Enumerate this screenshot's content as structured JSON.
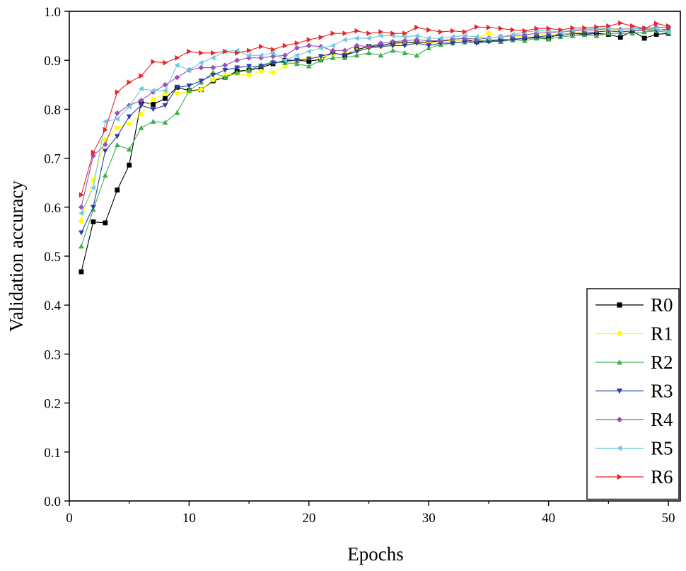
{
  "chart_data": {
    "type": "line",
    "title": "",
    "xlabel": "Epochs",
    "ylabel": "Validation accuracy",
    "xlim": [
      0,
      51
    ],
    "ylim": [
      0.0,
      1.0
    ],
    "x_ticks": [
      0,
      10,
      20,
      30,
      40,
      50
    ],
    "y_ticks": [
      0.0,
      0.1,
      0.2,
      0.3,
      0.4,
      0.5,
      0.6,
      0.7,
      0.8,
      0.9,
      1.0
    ],
    "x_tick_labels": [
      "0",
      "10",
      "20",
      "30",
      "40",
      "50"
    ],
    "y_tick_labels": [
      "0.0",
      "0.1",
      "0.2",
      "0.3",
      "0.4",
      "0.5",
      "0.6",
      "0.7",
      "0.8",
      "0.9",
      "1.0"
    ],
    "grid": false,
    "legend_position": "bottom-right",
    "x": [
      1,
      2,
      3,
      4,
      5,
      6,
      7,
      8,
      9,
      10,
      11,
      12,
      13,
      14,
      15,
      16,
      17,
      18,
      19,
      20,
      21,
      22,
      23,
      24,
      25,
      26,
      27,
      28,
      29,
      30,
      31,
      32,
      33,
      34,
      35,
      36,
      37,
      38,
      39,
      40,
      41,
      42,
      43,
      44,
      45,
      46,
      47,
      48,
      49,
      50
    ],
    "series": [
      {
        "name": "R0",
        "color": "#000000",
        "marker": "square",
        "values": [
          0.468,
          0.57,
          0.568,
          0.635,
          0.686,
          0.815,
          0.81,
          0.822,
          0.845,
          0.838,
          0.84,
          0.858,
          0.865,
          0.878,
          0.88,
          0.885,
          0.893,
          0.9,
          0.9,
          0.898,
          0.902,
          0.915,
          0.91,
          0.922,
          0.928,
          0.93,
          0.935,
          0.936,
          0.937,
          0.937,
          0.94,
          0.94,
          0.942,
          0.938,
          0.94,
          0.942,
          0.942,
          0.945,
          0.946,
          0.945,
          0.955,
          0.955,
          0.953,
          0.955,
          0.953,
          0.947,
          0.96,
          0.945,
          0.953,
          0.955
        ]
      },
      {
        "name": "R1",
        "color": "#ffff00",
        "marker": "circle",
        "values": [
          0.572,
          0.655,
          0.738,
          0.762,
          0.77,
          0.79,
          0.82,
          0.832,
          0.833,
          0.835,
          0.84,
          0.86,
          0.87,
          0.872,
          0.87,
          0.878,
          0.875,
          0.888,
          0.9,
          0.905,
          0.905,
          0.912,
          0.915,
          0.92,
          0.925,
          0.928,
          0.93,
          0.933,
          0.935,
          0.935,
          0.938,
          0.94,
          0.942,
          0.945,
          0.955,
          0.948,
          0.95,
          0.948,
          0.952,
          0.953,
          0.955,
          0.955,
          0.958,
          0.96,
          0.96,
          0.962,
          0.963,
          0.96,
          0.962,
          0.963
        ]
      },
      {
        "name": "R2",
        "color": "#3cb34a",
        "marker": "triangle-up",
        "values": [
          0.52,
          0.595,
          0.665,
          0.727,
          0.718,
          0.762,
          0.775,
          0.773,
          0.793,
          0.838,
          0.855,
          0.875,
          0.865,
          0.875,
          0.88,
          0.89,
          0.897,
          0.895,
          0.893,
          0.888,
          0.9,
          0.905,
          0.905,
          0.91,
          0.915,
          0.91,
          0.92,
          0.915,
          0.91,
          0.925,
          0.932,
          0.935,
          0.937,
          0.94,
          0.94,
          0.938,
          0.942,
          0.94,
          0.945,
          0.943,
          0.948,
          0.95,
          0.952,
          0.95,
          0.955,
          0.955,
          0.955,
          0.958,
          0.96,
          0.957
        ]
      },
      {
        "name": "R3",
        "color": "#2a3fa8",
        "marker": "triangle-down",
        "values": [
          0.548,
          0.6,
          0.715,
          0.745,
          0.785,
          0.808,
          0.8,
          0.808,
          0.845,
          0.848,
          0.858,
          0.87,
          0.88,
          0.885,
          0.888,
          0.888,
          0.895,
          0.898,
          0.9,
          0.903,
          0.908,
          0.915,
          0.91,
          0.918,
          0.925,
          0.928,
          0.93,
          0.93,
          0.935,
          0.93,
          0.935,
          0.935,
          0.938,
          0.935,
          0.938,
          0.94,
          0.943,
          0.945,
          0.948,
          0.95,
          0.95,
          0.955,
          0.955,
          0.958,
          0.96,
          0.958,
          0.96,
          0.962,
          0.962,
          0.963
        ]
      },
      {
        "name": "R4",
        "color": "#9b4fb3",
        "marker": "diamond",
        "values": [
          0.6,
          0.705,
          0.728,
          0.792,
          0.808,
          0.818,
          0.835,
          0.85,
          0.865,
          0.88,
          0.885,
          0.885,
          0.89,
          0.9,
          0.905,
          0.905,
          0.908,
          0.91,
          0.925,
          0.93,
          0.928,
          0.92,
          0.92,
          0.93,
          0.928,
          0.935,
          0.938,
          0.94,
          0.942,
          0.94,
          0.94,
          0.943,
          0.945,
          0.943,
          0.945,
          0.948,
          0.95,
          0.952,
          0.955,
          0.957,
          0.958,
          0.96,
          0.962,
          0.962,
          0.965,
          0.963,
          0.965,
          0.965,
          0.967,
          0.968
        ]
      },
      {
        "name": "R5",
        "color": "#72c8e0",
        "marker": "triangle-left",
        "values": [
          0.588,
          0.64,
          0.775,
          0.78,
          0.805,
          0.842,
          0.838,
          0.838,
          0.89,
          0.88,
          0.895,
          0.905,
          0.918,
          0.92,
          0.91,
          0.91,
          0.915,
          0.9,
          0.91,
          0.918,
          0.925,
          0.93,
          0.942,
          0.945,
          0.945,
          0.95,
          0.95,
          0.948,
          0.95,
          0.945,
          0.945,
          0.948,
          0.95,
          0.948,
          0.945,
          0.948,
          0.952,
          0.958,
          0.96,
          0.96,
          0.958,
          0.962,
          0.963,
          0.965,
          0.965,
          0.962,
          0.965,
          0.963,
          0.965,
          0.958
        ]
      },
      {
        "name": "R6",
        "color": "#e8262a",
        "marker": "triangle-right",
        "values": [
          0.625,
          0.712,
          0.758,
          0.835,
          0.855,
          0.868,
          0.897,
          0.895,
          0.905,
          0.918,
          0.915,
          0.915,
          0.918,
          0.915,
          0.92,
          0.928,
          0.922,
          0.93,
          0.935,
          0.942,
          0.947,
          0.955,
          0.955,
          0.96,
          0.955,
          0.958,
          0.955,
          0.955,
          0.967,
          0.962,
          0.958,
          0.96,
          0.958,
          0.968,
          0.967,
          0.965,
          0.962,
          0.96,
          0.965,
          0.965,
          0.962,
          0.966,
          0.966,
          0.968,
          0.97,
          0.976,
          0.97,
          0.965,
          0.975,
          0.97
        ]
      }
    ]
  }
}
